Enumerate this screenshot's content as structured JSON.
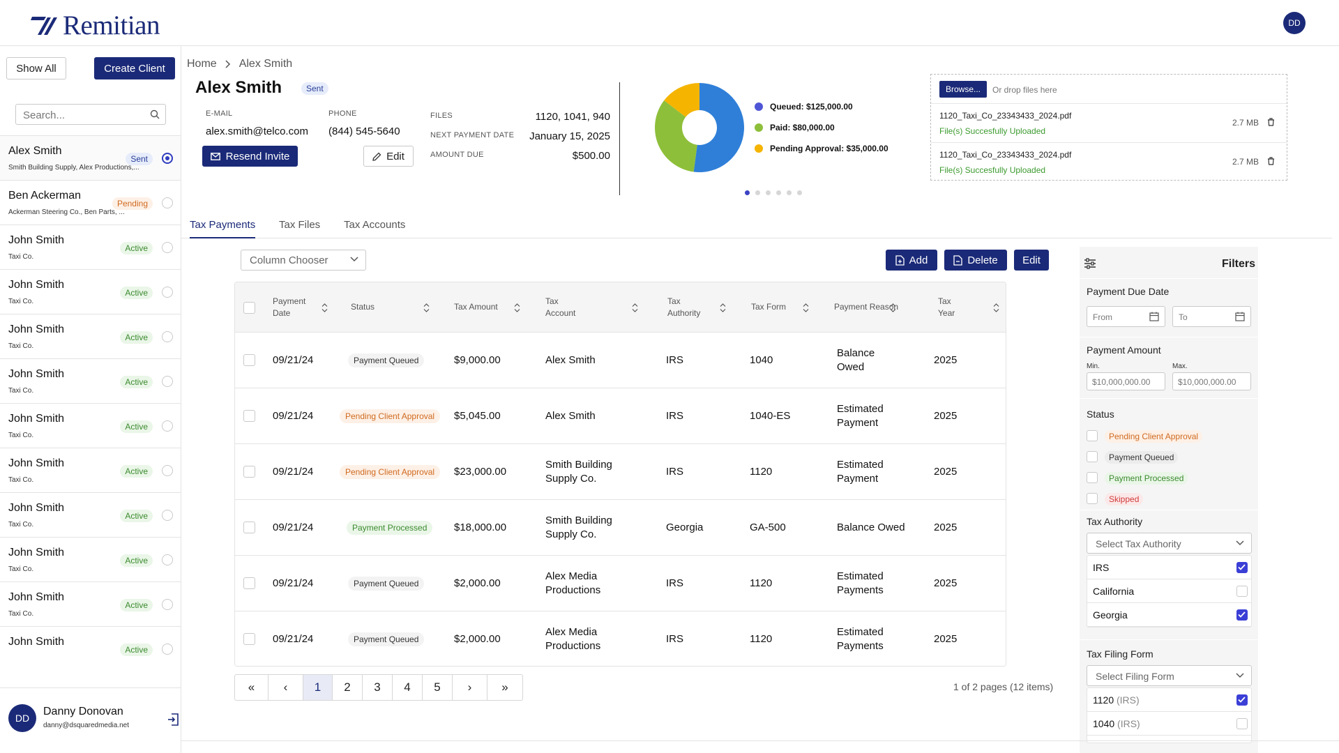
{
  "header": {
    "logo_text": "Remitian",
    "avatar_initials": "DD"
  },
  "sidebar": {
    "show_all_label": "Show All",
    "create_client_label": "Create Client",
    "search_placeholder": "Search...",
    "clients": [
      {
        "name": "Alex Smith",
        "company": "Smith Building Supply, Alex Productions,...",
        "status": "Sent",
        "selected": true
      },
      {
        "name": "Ben Ackerman",
        "company": "Ackerman Steering Co., Ben Parts, ...",
        "status": "Pending",
        "selected": false
      },
      {
        "name": "John Smith",
        "company": "Taxi Co.",
        "status": "Active",
        "selected": false
      },
      {
        "name": "John Smith",
        "company": "Taxi Co.",
        "status": "Active",
        "selected": false
      },
      {
        "name": "John Smith",
        "company": "Taxi Co.",
        "status": "Active",
        "selected": false
      },
      {
        "name": "John Smith",
        "company": "Taxi Co.",
        "status": "Active",
        "selected": false
      },
      {
        "name": "John Smith",
        "company": "Taxi Co.",
        "status": "Active",
        "selected": false
      },
      {
        "name": "John Smith",
        "company": "Taxi Co.",
        "status": "Active",
        "selected": false
      },
      {
        "name": "John Smith",
        "company": "Taxi Co.",
        "status": "Active",
        "selected": false
      },
      {
        "name": "John Smith",
        "company": "Taxi Co.",
        "status": "Active",
        "selected": false
      },
      {
        "name": "John Smith",
        "company": "Taxi Co.",
        "status": "Active",
        "selected": false
      },
      {
        "name": "John Smith",
        "company": "",
        "status": "Active",
        "selected": false
      }
    ],
    "user": {
      "initials": "DD",
      "name": "Danny Donovan",
      "email": "danny@dsquaredmedia.net"
    }
  },
  "breadcrumb": {
    "home": "Home",
    "current": "Alex Smith"
  },
  "client": {
    "name": "Alex Smith",
    "status": "Sent",
    "email_label": "E-MAIL",
    "email": "alex.smith@telco.com",
    "phone_label": "PHONE",
    "phone": "(844) 545-5640",
    "resend_label": "Resend Invite",
    "edit_label": "Edit",
    "files_label": "FILES",
    "files": "1120, 1041, 940",
    "next_payment_label": "NEXT PAYMENT DATE",
    "next_payment": "January 15, 2025",
    "amount_due_label": "AMOUNT DUE",
    "amount_due": "$500.00"
  },
  "chart_data": {
    "type": "pie",
    "donut": true,
    "title": "",
    "slices": [
      {
        "label": "Queued",
        "value": 125000,
        "display": "Queued: $125,000.00",
        "color": "#2f7fd8"
      },
      {
        "label": "Paid",
        "value": 80000,
        "display": "Paid: $80,000.00",
        "color": "#8ebf3a"
      },
      {
        "label": "Pending Approval",
        "value": 35000,
        "display": "Pending Approval: $35,000.00",
        "color": "#f5b400"
      }
    ],
    "legend_dot_colors": [
      "#4f56d6",
      "#8ebf3a",
      "#f5b400"
    ],
    "legend_position": "right",
    "pagination_dots": 6,
    "active_dot": 1
  },
  "upload": {
    "browse_label": "Browse...",
    "drop_label": "Or drop files here",
    "files": [
      {
        "name": "1120_Taxi_Co_23343433_2024.pdf",
        "status": "File(s) Succesfully Uploaded",
        "size": "2.7 MB"
      },
      {
        "name": "1120_Taxi_Co_23343433_2024.pdf",
        "status": "File(s) Succesfully Uploaded",
        "size": "2.7 MB"
      }
    ]
  },
  "tabs": [
    "Tax Payments",
    "Tax Files",
    "Tax Accounts"
  ],
  "toolbar": {
    "column_chooser": "Column Chooser",
    "add_label": "Add",
    "delete_label": "Delete",
    "edit_label": "Edit"
  },
  "table": {
    "columns": [
      "Payment Date",
      "Status",
      "Tax Amount",
      "Tax Account",
      "Tax Authority",
      "Tax Form",
      "Payment Reason",
      "Tax Year"
    ],
    "column_lines": [
      [
        "Payment",
        "Date"
      ],
      [
        "Status"
      ],
      [
        "Tax Amount"
      ],
      [
        "Tax",
        "Account"
      ],
      [
        "Tax",
        "Authority"
      ],
      [
        "Tax Form"
      ],
      [
        "Payment Reason"
      ],
      [
        "Tax",
        "Year"
      ]
    ],
    "rows": [
      {
        "date": "09/21/24",
        "status": "Payment Queued",
        "kind": "queued",
        "amount": "$9,000.00",
        "account": [
          "Alex Smith"
        ],
        "authority": "IRS",
        "form": "1040",
        "reason": [
          "Balance",
          "Owed"
        ],
        "year": "2025"
      },
      {
        "date": "09/21/24",
        "status": "Pending Client Approval",
        "kind": "pending",
        "amount": "$5,045.00",
        "account": [
          "Alex Smith"
        ],
        "authority": "IRS",
        "form": "1040-ES",
        "reason": [
          "Estimated",
          "Payment"
        ],
        "year": "2025"
      },
      {
        "date": "09/21/24",
        "status": "Pending Client Approval",
        "kind": "pending",
        "amount": "$23,000.00",
        "account": [
          "Smith Building",
          "Supply Co."
        ],
        "authority": "IRS",
        "form": "1120",
        "reason": [
          "Estimated",
          "Payment"
        ],
        "year": "2025"
      },
      {
        "date": "09/21/24",
        "status": "Payment Processed",
        "kind": "processed",
        "amount": "$18,000.00",
        "account": [
          "Smith Building",
          "Supply Co."
        ],
        "authority": "Georgia",
        "form": "GA-500",
        "reason": [
          "Balance Owed"
        ],
        "year": "2025"
      },
      {
        "date": "09/21/24",
        "status": "Payment Queued",
        "kind": "queued",
        "amount": "$2,000.00",
        "account": [
          "Alex Media",
          "Productions"
        ],
        "authority": "IRS",
        "form": "1120",
        "reason": [
          "Estimated",
          "Payments"
        ],
        "year": "2025"
      },
      {
        "date": "09/21/24",
        "status": "Payment Queued",
        "kind": "queued",
        "amount": "$2,000.00",
        "account": [
          "Alex Media",
          "Productions"
        ],
        "authority": "IRS",
        "form": "1120",
        "reason": [
          "Estimated",
          "Payments"
        ],
        "year": "2025"
      }
    ]
  },
  "pagination": {
    "pages": [
      "1",
      "2",
      "3",
      "4",
      "5"
    ],
    "current": "1",
    "first": "«",
    "prev": "‹",
    "next": "›",
    "last": "»",
    "info": "1 of 2 pages (12 items)"
  },
  "filters": {
    "title": "Filters",
    "payment_due_date": {
      "label": "Payment Due Date",
      "from": "From",
      "to": "To"
    },
    "payment_amount": {
      "label": "Payment Amount",
      "min_label": "Min.",
      "max_label": "Max.",
      "min": "$10,000,000.00",
      "max": "$10,000,000.00"
    },
    "status": {
      "label": "Status",
      "options": [
        {
          "text": "Pending Client Approval",
          "color": "#d06a20",
          "bg": "#fdf0e6"
        },
        {
          "text": "Payment Queued",
          "color": "#333333",
          "bg": "#ececec"
        },
        {
          "text": "Payment Processed",
          "color": "#3b8a2e",
          "bg": "#eaf6e8"
        },
        {
          "text": "Skipped",
          "color": "#d23a3a",
          "bg": "#fbe9e9"
        }
      ]
    },
    "tax_authority": {
      "label": "Tax Authority",
      "placeholder": "Select Tax Authority",
      "options": [
        {
          "text": "IRS",
          "checked": true
        },
        {
          "text": "California",
          "checked": false
        },
        {
          "text": "Georgia",
          "checked": true
        }
      ]
    },
    "tax_filing_form": {
      "label": "Tax Filing Form",
      "placeholder": "Select Filing Form",
      "options": [
        {
          "text": "1120",
          "suffix": "(IRS)",
          "checked": true
        },
        {
          "text": "1040",
          "suffix": "(IRS)",
          "checked": false
        }
      ]
    }
  }
}
